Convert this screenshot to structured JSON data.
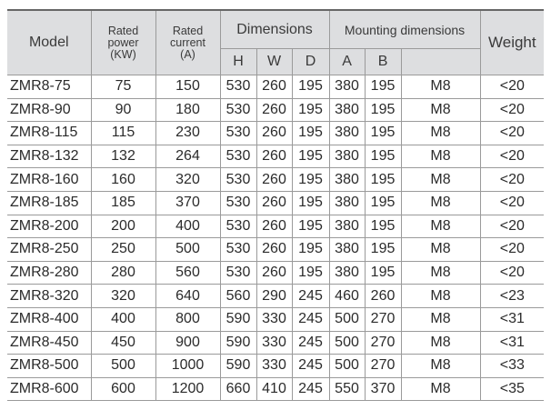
{
  "header": {
    "model": "Model",
    "rated_power": [
      "Rated",
      "power",
      "(KW)"
    ],
    "rated_current": [
      "Rated",
      "current",
      "(A)"
    ],
    "dimensions": "Dimensions",
    "mounting_dimensions": "Mounting dimensions",
    "weight": "Weight",
    "dim_sub": [
      "H",
      "W",
      "D"
    ],
    "mount_sub": [
      "A",
      "B",
      ""
    ]
  },
  "rows": [
    [
      "ZMR8-75",
      "75",
      "150",
      "530",
      "260",
      "195",
      "380",
      "195",
      "M8",
      "<20"
    ],
    [
      "ZMR8-90",
      "90",
      "180",
      "530",
      "260",
      "195",
      "380",
      "195",
      "M8",
      "<20"
    ],
    [
      "ZMR8-115",
      "115",
      "230",
      "530",
      "260",
      "195",
      "380",
      "195",
      "M8",
      "<20"
    ],
    [
      "ZMR8-132",
      "132",
      "264",
      "530",
      "260",
      "195",
      "380",
      "195",
      "M8",
      "<20"
    ],
    [
      "ZMR8-160",
      "160",
      "320",
      "530",
      "260",
      "195",
      "380",
      "195",
      "M8",
      "<20"
    ],
    [
      "ZMR8-185",
      "185",
      "370",
      "530",
      "260",
      "195",
      "380",
      "195",
      "M8",
      "<20"
    ],
    [
      "ZMR8-200",
      "200",
      "400",
      "530",
      "260",
      "195",
      "380",
      "195",
      "M8",
      "<20"
    ],
    [
      "ZMR8-250",
      "250",
      "500",
      "530",
      "260",
      "195",
      "380",
      "195",
      "M8",
      "<20"
    ],
    [
      "ZMR8-280",
      "280",
      "560",
      "530",
      "260",
      "195",
      "380",
      "195",
      "M8",
      "<20"
    ],
    [
      "ZMR8-320",
      "320",
      "640",
      "560",
      "290",
      "245",
      "460",
      "260",
      "M8",
      "<23"
    ],
    [
      "ZMR8-400",
      "400",
      "800",
      "590",
      "330",
      "245",
      "500",
      "270",
      "M8",
      "<31"
    ],
    [
      "ZMR8-450",
      "450",
      "900",
      "590",
      "330",
      "245",
      "500",
      "270",
      "M8",
      "<31"
    ],
    [
      "ZMR8-500",
      "500",
      "1000",
      "590",
      "330",
      "245",
      "500",
      "270",
      "M8",
      "<33"
    ],
    [
      "ZMR8-600",
      "600",
      "1200",
      "660",
      "410",
      "245",
      "550",
      "370",
      "M8",
      "<35"
    ]
  ]
}
